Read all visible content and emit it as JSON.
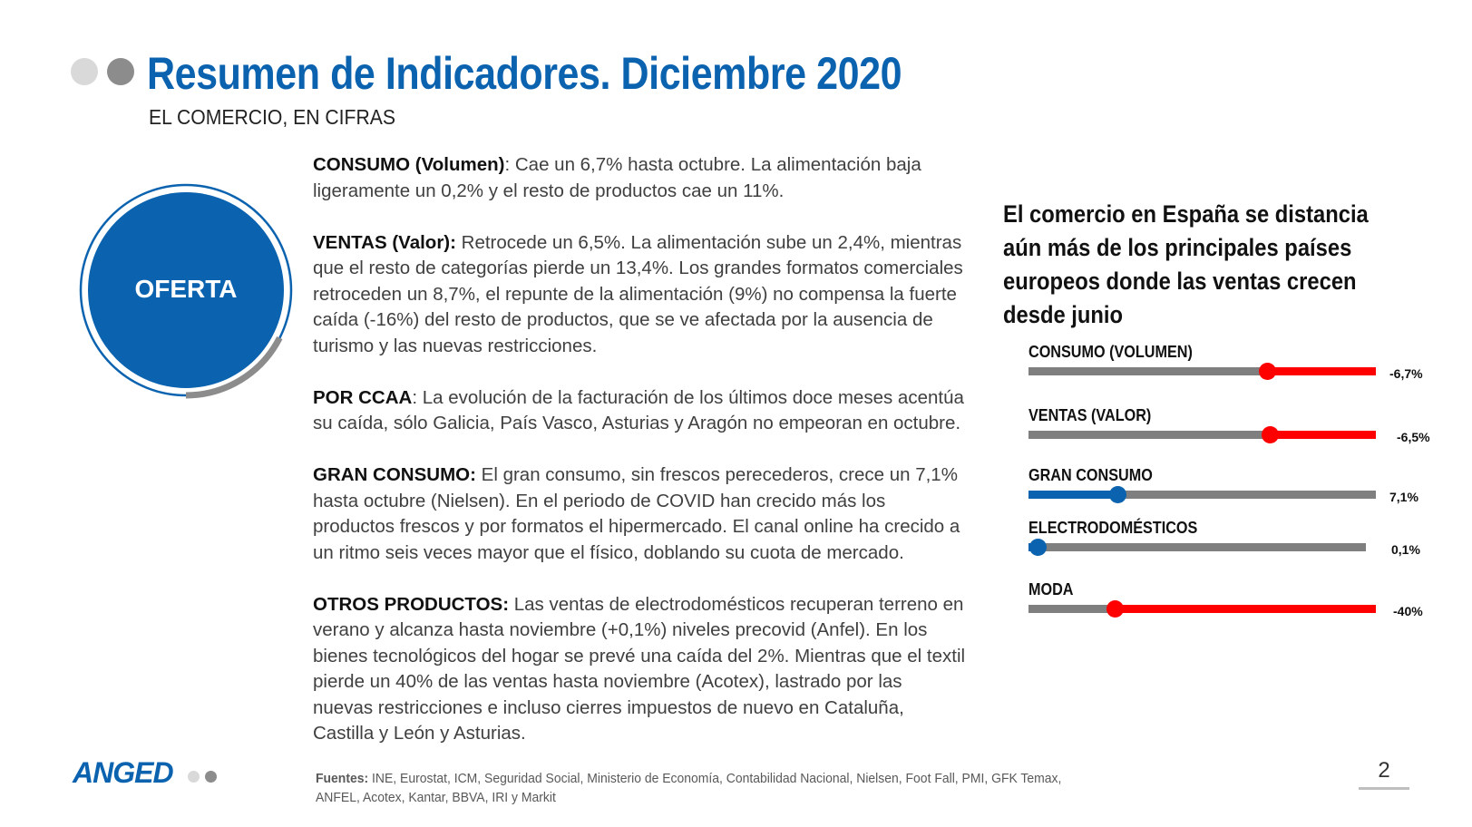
{
  "header": {
    "title": "Resumen de Indicadores. Diciembre 2020",
    "subtitle": "EL COMERCIO, EN CIFRAS"
  },
  "section_badge": {
    "label": "OFERTA"
  },
  "paragraphs": [
    {
      "heading": "CONSUMO (Volumen)",
      "sep": ": ",
      "text": "Cae un 6,7% hasta octubre. La alimentación baja ligeramente un 0,2% y el resto de productos cae un 11%."
    },
    {
      "heading": "VENTAS (Valor):",
      "sep": " ",
      "text": "Retrocede un 6,5%. La alimentación sube un 2,4%, mientras que el resto de categorías pierde un 13,4%. Los grandes formatos comerciales retroceden un 8,7%, el repunte de la alimentación (9%) no compensa la fuerte caída (-16%) del resto de productos, que se ve afectada por la ausencia de turismo y las nuevas restricciones."
    },
    {
      "heading": "POR CCAA",
      "sep": ": ",
      "text": "La evolución de la facturación de los últimos doce meses acentúa su caída, sólo Galicia, País Vasco, Asturias y Aragón no empeoran en octubre."
    },
    {
      "heading": "GRAN CONSUMO:",
      "sep": " ",
      "text": "El gran consumo, sin frescos perecederos, crece un 7,1% hasta octubre (Nielsen). En el periodo de COVID han crecido más los productos frescos y por formatos el hipermercado. El canal online ha crecido a un ritmo seis veces mayor que el físico, doblando su cuota de mercado."
    },
    {
      "heading": "OTROS PRODUCTOS:",
      "sep": "  ",
      "text": "Las ventas de electrodomésticos recuperan terreno en verano y alcanza hasta noviembre (+0,1%) niveles precovid (Anfel). En los bienes tecnológicos del hogar se prevé una caída del 2%. Mientras que el textil pierde un 40% de las ventas hasta noviembre (Acotex), lastrado por las nuevas restricciones e incluso cierres impuestos de nuevo en Cataluña, Castilla y León y Asturias."
    }
  ],
  "headline": "El comercio en España se distancia aún más de los principales países europeos donde las ventas crecen desde junio",
  "indicators": [
    {
      "label": "CONSUMO (VOLUMEN)",
      "value": "-6,7%",
      "direction": "down",
      "color": "#ff0000"
    },
    {
      "label": "VENTAS (VALOR)",
      "value": "-6,5%",
      "direction": "down",
      "color": "#ff0000"
    },
    {
      "label": "GRAN CONSUMO",
      "value": "7,1%",
      "direction": "up",
      "color": "#0b63b0"
    },
    {
      "label": "ELECTRODOMÉSTICOS",
      "value": "0,1%",
      "direction": "up",
      "color": "#0b63b0"
    },
    {
      "label": "MODA",
      "value": "-40%",
      "direction": "down",
      "color": "#ff0000"
    }
  ],
  "footer": {
    "logo": "ANGED",
    "sources_label": "Fuentes:",
    "sources_text": "INE, Eurostat, ICM, Seguridad Social, Ministerio de Economía, Contabilidad Nacional, Nielsen, Foot Fall, PMI, GFK Temax, ANFEL, Acotex, Kantar, BBVA, IRI y Markit",
    "page_number": "2"
  },
  "colors": {
    "brand_blue": "#0b63b0",
    "negative": "#ff0000",
    "track": "#7f7f7f"
  }
}
